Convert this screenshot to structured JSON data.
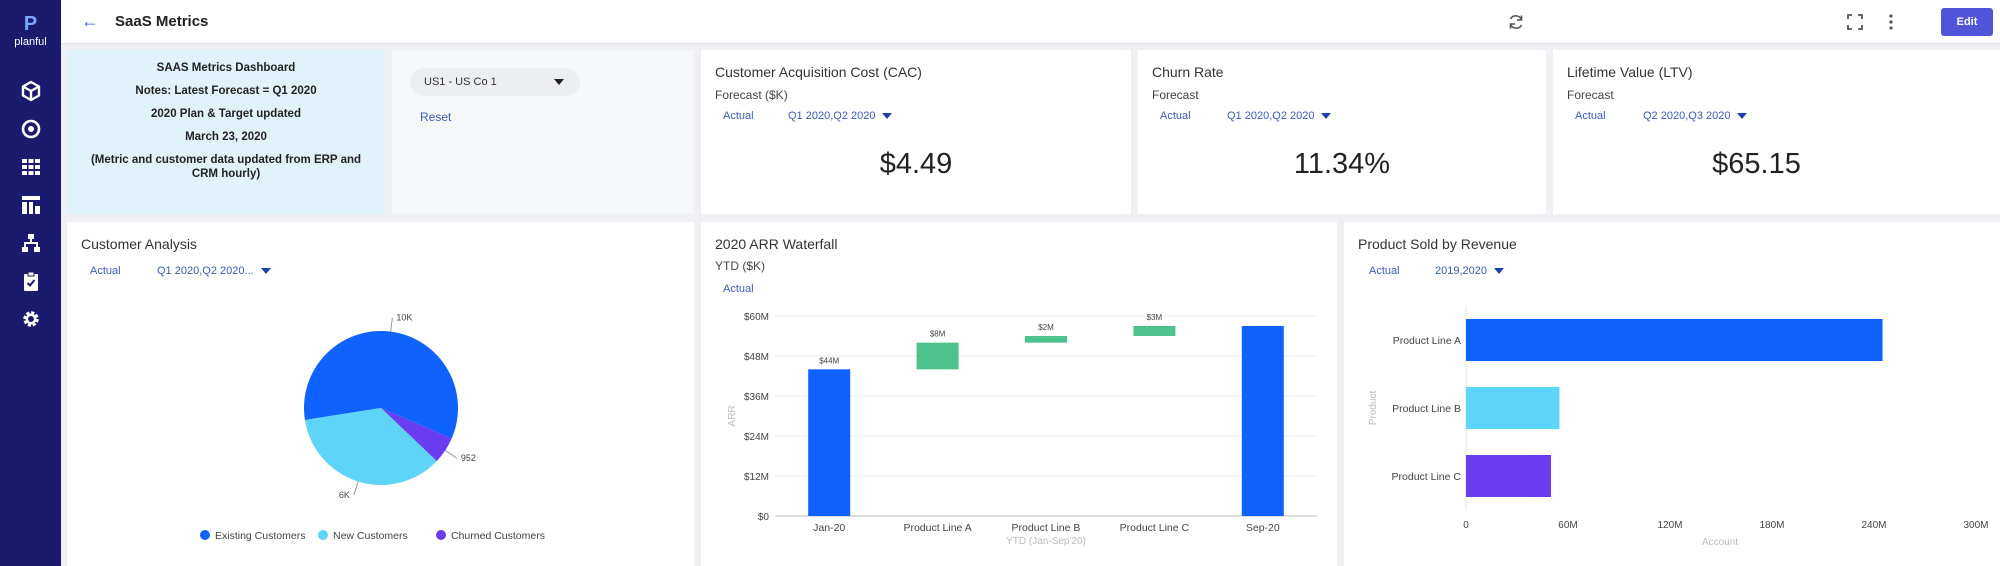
{
  "sidebar": {
    "logo_text": "planful",
    "icons": [
      "cube-icon",
      "target-icon",
      "grid-icon",
      "dashboard-icon",
      "hierarchy-icon",
      "clipboard-check-icon",
      "gear-icon"
    ]
  },
  "header": {
    "title": "SaaS Metrics",
    "edit_label": "Edit"
  },
  "notes": {
    "lines": [
      "SAAS Metrics Dashboard",
      "Notes: Latest Forecast = Q1 2020",
      "2020 Plan & Target updated",
      "March 23, 2020",
      "(Metric and customer data updated from ERP and CRM hourly)"
    ]
  },
  "filter": {
    "selected": "US1 - US Co 1",
    "reset_label": "Reset"
  },
  "kpis": [
    {
      "title": "Customer Acquisition Cost (CAC)",
      "subtitle": "Forecast ($K)",
      "scenario": "Actual",
      "period": "Q1 2020,Q2 2020",
      "value": "$4.49"
    },
    {
      "title": "Churn Rate",
      "subtitle": "Forecast",
      "scenario": "Actual",
      "period": "Q1 2020,Q2 2020",
      "value": "11.34%"
    },
    {
      "title": "Lifetime Value (LTV)",
      "subtitle": "Forecast",
      "scenario": "Actual",
      "period": "Q2 2020,Q3 2020",
      "value": "$65.15"
    }
  ],
  "customer_analysis": {
    "title": "Customer Analysis",
    "scenario": "Actual",
    "period": "Q1 2020,Q2 2020..."
  },
  "arr_waterfall": {
    "title": "2020 ARR Waterfall",
    "subtitle": "YTD ($K)",
    "scenario": "Actual"
  },
  "product_sold": {
    "title": "Product Sold by Revenue",
    "scenario": "Actual",
    "period": "2019,2020"
  },
  "chart_data": [
    {
      "type": "pie",
      "categories": [
        "Existing Customers",
        "New Customers",
        "Churned Customers"
      ],
      "values": [
        10000,
        6000,
        952
      ],
      "data_labels": [
        "10K",
        "6K",
        "952"
      ],
      "colors": [
        "#0f62fe",
        "#5fd4f9",
        "#6a3df0"
      ],
      "legend": "bottom"
    },
    {
      "type": "bar",
      "subtype": "waterfall",
      "categories": [
        "Jan-20",
        "Product Line A",
        "Product Line B",
        "Product Line C",
        "Sep-20"
      ],
      "values": [
        44,
        8,
        2,
        3,
        57
      ],
      "data_labels": [
        "$44M",
        "$8M",
        "$2M",
        "$3M",
        ""
      ],
      "colors": [
        "#0f62fe",
        "#4cc38a",
        "#4cc38a",
        "#4cc38a",
        "#0f62fe"
      ],
      "xlabel": "YTD (Jan-Sep'20)",
      "ylabel": "ARR",
      "ylim": [
        0,
        60
      ],
      "yticks": [
        "$0",
        "$12M",
        "$24M",
        "$36M",
        "$48M",
        "$60M"
      ]
    },
    {
      "type": "bar",
      "orientation": "horizontal",
      "categories": [
        "Product Line A",
        "Product Line B",
        "Product Line C"
      ],
      "values": [
        245,
        55,
        50
      ],
      "colors": [
        "#0f62fe",
        "#5fd4f9",
        "#6a3df0"
      ],
      "xlabel": "Account",
      "ylabel": "Product",
      "xlim": [
        0,
        300
      ],
      "xticks": [
        "0",
        "60M",
        "120M",
        "180M",
        "240M",
        "300M"
      ]
    }
  ]
}
